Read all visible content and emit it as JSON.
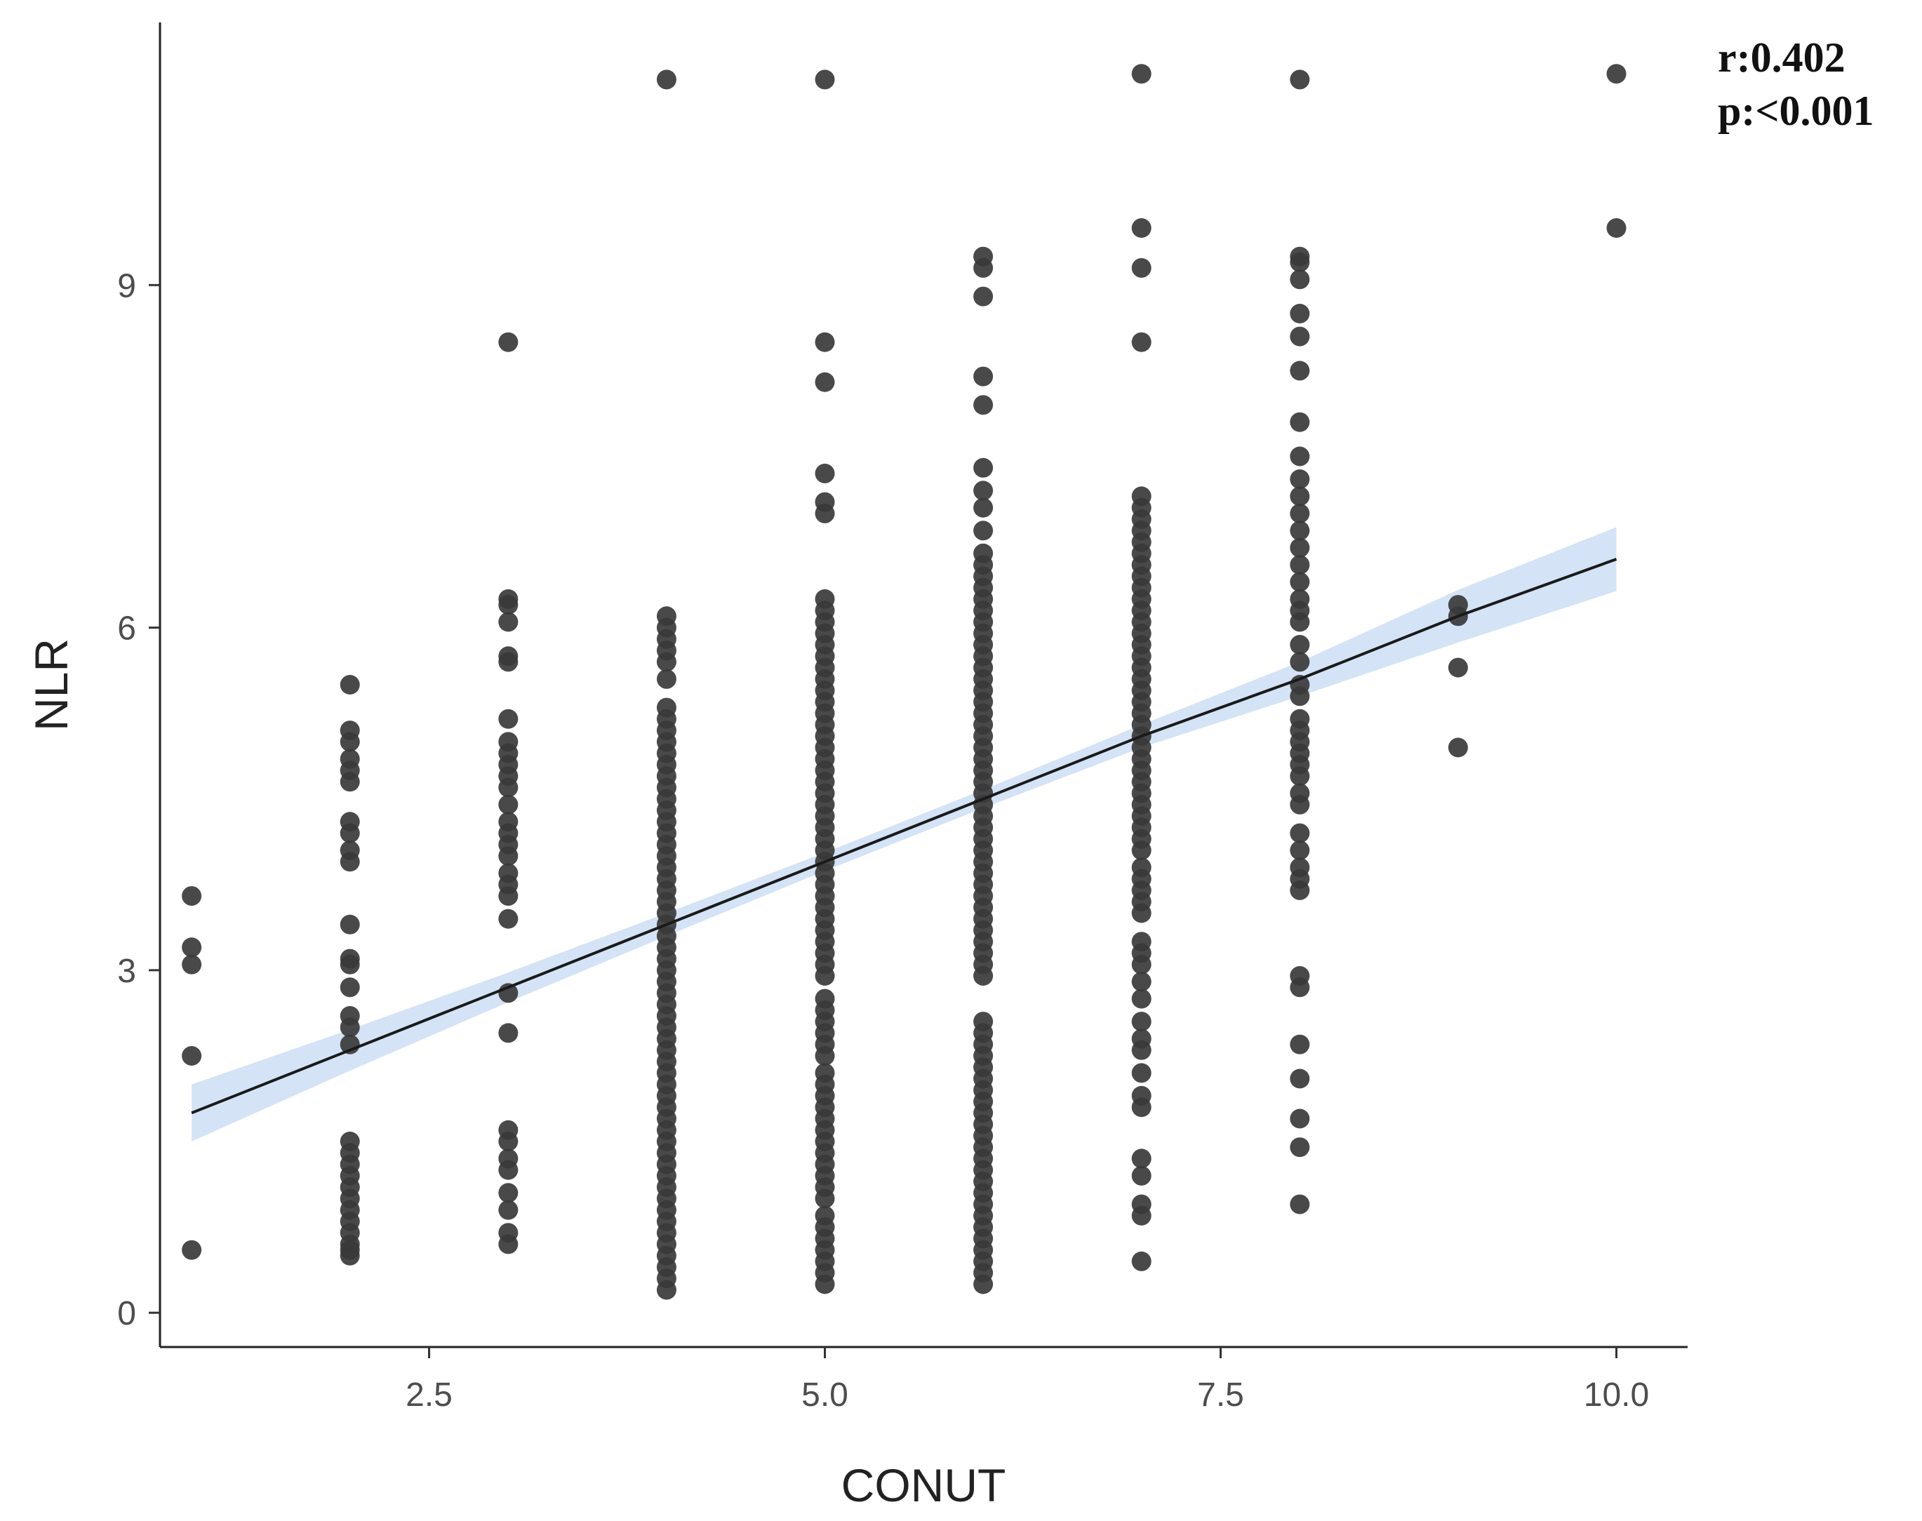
{
  "chart_data": {
    "type": "scatter",
    "title": "",
    "xlabel": "CONUT",
    "ylabel": "NLR",
    "xlim": [
      0.8,
      10.45
    ],
    "ylim": [
      -0.3,
      11.3
    ],
    "x_ticks": [
      "2.5",
      "5.0",
      "7.5",
      "10.0"
    ],
    "y_ticks": [
      "0",
      "3",
      "6",
      "9"
    ],
    "grid": false,
    "annotations": [
      "r:0.402",
      "p:<0.001"
    ],
    "point_color": "#3a3a3a",
    "line_color": "#1a1a1a",
    "band_color": "#c6d9f2",
    "regression": {
      "x": [
        1,
        2,
        3,
        4,
        5,
        6,
        7,
        8,
        9,
        10
      ],
      "y": [
        1.75,
        2.3,
        2.85,
        3.4,
        3.95,
        4.5,
        5.05,
        5.55,
        6.1,
        6.6
      ],
      "ci_lower": [
        1.5,
        2.12,
        2.72,
        3.3,
        3.87,
        4.42,
        4.95,
        5.4,
        5.87,
        6.32
      ],
      "ci_upper": [
        2.0,
        2.48,
        2.98,
        3.5,
        4.03,
        4.58,
        5.15,
        5.7,
        6.33,
        6.88
      ]
    },
    "points": [
      {
        "x": 1,
        "y": [
          0.55,
          2.25,
          3.05,
          3.2,
          3.65
        ]
      },
      {
        "x": 2,
        "y": [
          0.5,
          0.55,
          0.6,
          0.7,
          0.8,
          0.9,
          1.0,
          1.1,
          1.2,
          1.3,
          1.4,
          1.5,
          2.35,
          2.5,
          2.6,
          2.85,
          3.05,
          3.1,
          3.4,
          3.95,
          4.05,
          4.2,
          4.3,
          4.65,
          4.75,
          4.85,
          5.0,
          5.1,
          5.5
        ]
      },
      {
        "x": 3,
        "y": [
          0.6,
          0.7,
          0.9,
          1.05,
          1.25,
          1.35,
          1.5,
          1.6,
          2.45,
          2.8,
          3.45,
          3.65,
          3.75,
          3.85,
          4.0,
          4.1,
          4.2,
          4.3,
          4.45,
          4.6,
          4.7,
          4.8,
          4.9,
          5.0,
          5.2,
          5.7,
          5.75,
          6.05,
          6.2,
          6.25,
          8.5
        ]
      },
      {
        "x": 4,
        "y": [
          0.2,
          0.3,
          0.4,
          0.5,
          0.6,
          0.7,
          0.8,
          0.9,
          1.0,
          1.1,
          1.2,
          1.3,
          1.4,
          1.5,
          1.6,
          1.7,
          1.8,
          1.9,
          2.0,
          2.1,
          2.2,
          2.3,
          2.4,
          2.5,
          2.6,
          2.7,
          2.8,
          2.9,
          3.0,
          3.1,
          3.2,
          3.3,
          3.4,
          3.5,
          3.6,
          3.7,
          3.8,
          3.9,
          4.0,
          4.1,
          4.2,
          4.3,
          4.4,
          4.5,
          4.6,
          4.7,
          4.8,
          4.9,
          5.0,
          5.1,
          5.2,
          5.3,
          5.55,
          5.7,
          5.8,
          5.9,
          6.0,
          6.1,
          10.8
        ]
      },
      {
        "x": 5,
        "y": [
          0.25,
          0.35,
          0.45,
          0.55,
          0.65,
          0.75,
          0.85,
          1.0,
          1.1,
          1.2,
          1.3,
          1.4,
          1.5,
          1.6,
          1.7,
          1.8,
          1.9,
          2.0,
          2.1,
          2.25,
          2.35,
          2.45,
          2.55,
          2.65,
          2.75,
          2.95,
          3.05,
          3.15,
          3.25,
          3.35,
          3.45,
          3.55,
          3.65,
          3.75,
          3.85,
          3.95,
          4.05,
          4.15,
          4.25,
          4.35,
          4.45,
          4.55,
          4.65,
          4.75,
          4.85,
          4.95,
          5.05,
          5.15,
          5.25,
          5.35,
          5.45,
          5.55,
          5.65,
          5.75,
          5.85,
          5.95,
          6.05,
          6.15,
          6.25,
          7.0,
          7.1,
          7.35,
          8.15,
          8.5,
          10.8
        ]
      },
      {
        "x": 6,
        "y": [
          0.25,
          0.35,
          0.45,
          0.55,
          0.65,
          0.75,
          0.85,
          0.95,
          1.05,
          1.15,
          1.25,
          1.35,
          1.45,
          1.55,
          1.65,
          1.75,
          1.85,
          1.95,
          2.05,
          2.15,
          2.25,
          2.35,
          2.45,
          2.55,
          2.95,
          3.05,
          3.15,
          3.25,
          3.35,
          3.45,
          3.55,
          3.65,
          3.75,
          3.85,
          3.95,
          4.05,
          4.15,
          4.25,
          4.35,
          4.45,
          4.55,
          4.65,
          4.75,
          4.85,
          4.95,
          5.05,
          5.15,
          5.25,
          5.35,
          5.45,
          5.55,
          5.65,
          5.75,
          5.85,
          5.95,
          6.05,
          6.15,
          6.25,
          6.35,
          6.45,
          6.55,
          6.65,
          6.85,
          7.05,
          7.2,
          7.4,
          7.95,
          8.2,
          8.9,
          9.15,
          9.25
        ]
      },
      {
        "x": 7,
        "y": [
          0.45,
          0.85,
          0.95,
          1.2,
          1.35,
          1.8,
          1.9,
          2.1,
          2.3,
          2.4,
          2.55,
          2.75,
          2.9,
          3.05,
          3.15,
          3.25,
          3.5,
          3.6,
          3.7,
          3.8,
          3.9,
          4.05,
          4.15,
          4.25,
          4.35,
          4.45,
          4.55,
          4.65,
          4.75,
          4.85,
          4.95,
          5.05,
          5.15,
          5.25,
          5.35,
          5.45,
          5.55,
          5.65,
          5.75,
          5.85,
          5.95,
          6.05,
          6.15,
          6.25,
          6.35,
          6.45,
          6.55,
          6.65,
          6.75,
          6.85,
          6.95,
          7.05,
          7.15,
          8.5,
          9.15,
          9.5,
          10.85
        ]
      },
      {
        "x": 8,
        "y": [
          0.95,
          1.45,
          1.7,
          2.05,
          2.35,
          2.85,
          2.95,
          3.7,
          3.8,
          3.9,
          4.05,
          4.2,
          4.45,
          4.55,
          4.7,
          4.8,
          4.9,
          5.0,
          5.1,
          5.2,
          5.4,
          5.5,
          5.7,
          5.85,
          6.05,
          6.15,
          6.25,
          6.4,
          6.55,
          6.7,
          6.85,
          7.0,
          7.15,
          7.3,
          7.5,
          7.8,
          8.25,
          8.55,
          8.75,
          9.05,
          9.2,
          9.25,
          10.8
        ]
      },
      {
        "x": 9,
        "y": [
          4.95,
          5.65,
          6.1,
          6.2
        ]
      },
      {
        "x": 10,
        "y": [
          9.5,
          10.85
        ]
      }
    ]
  }
}
